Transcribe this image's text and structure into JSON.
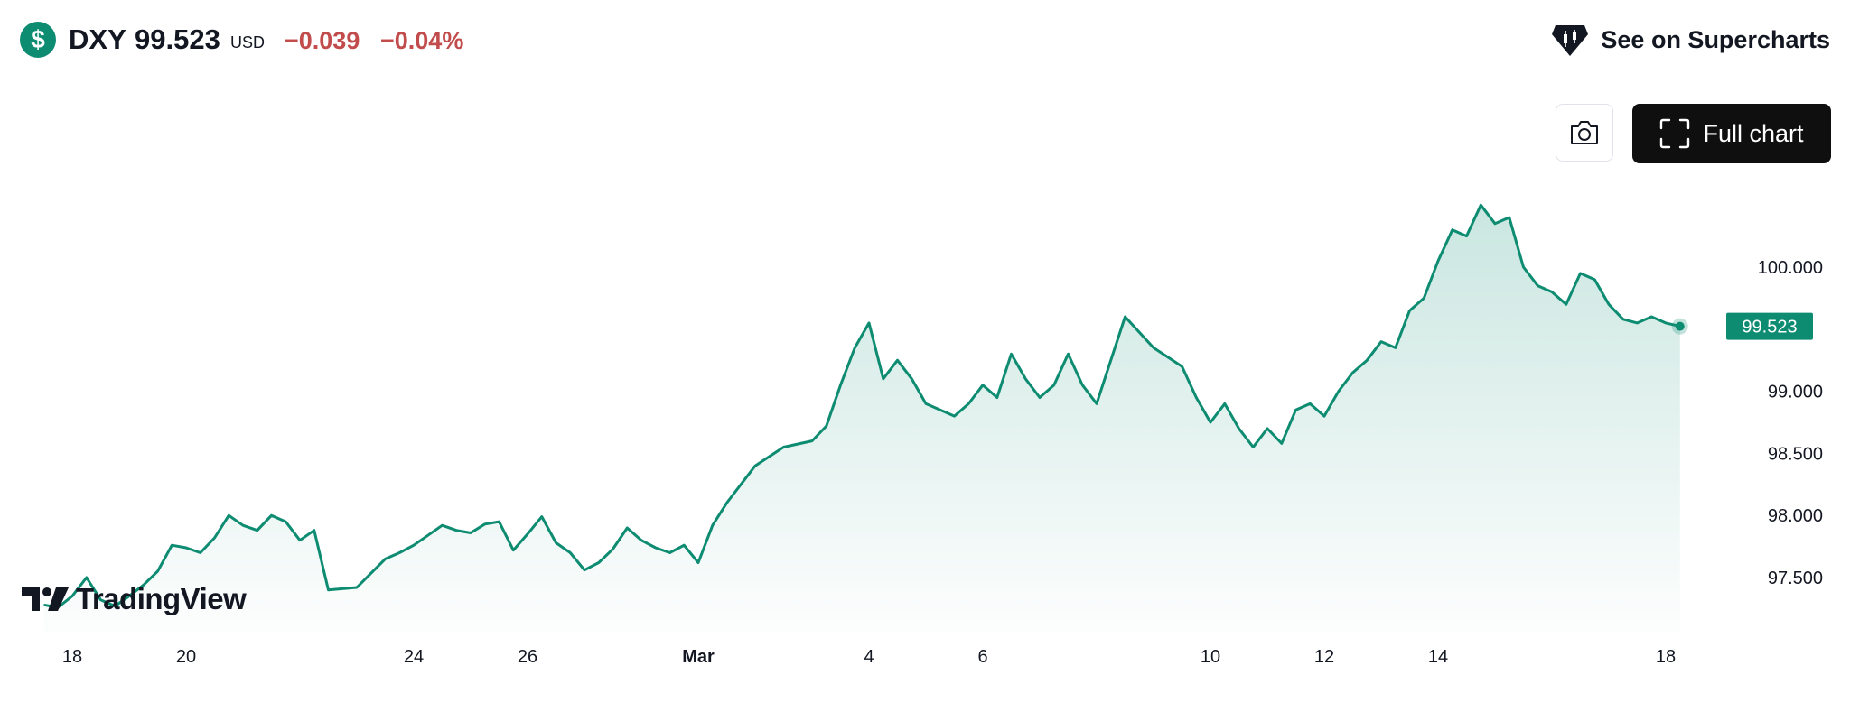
{
  "header": {
    "symbol": "DXY",
    "price": "99.523",
    "currency": "USD",
    "change": "−0.039",
    "change_percent": "−0.04%",
    "symbol_icon": "dollar-icon",
    "supercharts_label": "See on Supercharts",
    "supercharts_icon": "tradingview-diamond-icon"
  },
  "toolbar": {
    "camera_icon": "camera-icon",
    "full_chart_label": "Full chart",
    "full_chart_icon": "fullscreen-icon"
  },
  "branding": {
    "logo_text": "TradingView"
  },
  "colors": {
    "line": "#0e8c72",
    "fill": "#0e8c72",
    "negative": "#c24c4c",
    "label_bg": "#0e8c72"
  },
  "chart_data": {
    "type": "area",
    "title": "",
    "xlabel": "",
    "ylabel": "",
    "ylim": [
      97.22,
      100.77
    ],
    "y_ticks": [
      "100.000",
      "99.000",
      "98.500",
      "98.000",
      "97.500"
    ],
    "y_tick_values": [
      100.0,
      99.0,
      98.5,
      98.0,
      97.5
    ],
    "x_ticks": [
      "18",
      "20",
      "24",
      "26",
      "Mar",
      "4",
      "6",
      "10",
      "12",
      "14",
      "18"
    ],
    "x_tick_values": [
      "Feb 18",
      "Feb 20",
      "Feb 24",
      "Feb 26",
      "Mar 1",
      "Mar 4",
      "Mar 6",
      "Mar 10",
      "Mar 12",
      "Mar 14",
      "Mar 18"
    ],
    "last_value_label": "99.523",
    "grid": false,
    "legend": "none",
    "series": [
      {
        "values": [
          {
            "x": "Feb 17 12:00",
            "y": 97.28
          },
          {
            "x": "Feb 17 18:00",
            "y": 97.26
          },
          {
            "x": "Feb 18 00:00",
            "y": 97.35
          },
          {
            "x": "Feb 18 06:00",
            "y": 97.5
          },
          {
            "x": "Feb 18 12:00",
            "y": 97.32
          },
          {
            "x": "Feb 18 18:00",
            "y": 97.27
          },
          {
            "x": "Feb 19 00:00",
            "y": 97.35
          },
          {
            "x": "Feb 19 06:00",
            "y": 97.44
          },
          {
            "x": "Feb 19 12:00",
            "y": 97.55
          },
          {
            "x": "Feb 19 18:00",
            "y": 97.76
          },
          {
            "x": "Feb 20 00:00",
            "y": 97.74
          },
          {
            "x": "Feb 20 06:00",
            "y": 97.7
          },
          {
            "x": "Feb 20 12:00",
            "y": 97.82
          },
          {
            "x": "Feb 20 18:00",
            "y": 98.0
          },
          {
            "x": "Feb 21 00:00",
            "y": 97.92
          },
          {
            "x": "Feb 21 06:00",
            "y": 97.88
          },
          {
            "x": "Feb 21 12:00",
            "y": 98.0
          },
          {
            "x": "Feb 21 18:00",
            "y": 97.95
          },
          {
            "x": "Feb 22 00:00",
            "y": 97.8
          },
          {
            "x": "Feb 22 06:00",
            "y": 97.88
          },
          {
            "x": "Feb 22 12:00",
            "y": 97.4
          },
          {
            "x": "Feb 23 00:00",
            "y": 97.42
          },
          {
            "x": "Feb 23 12:00",
            "y": 97.65
          },
          {
            "x": "Feb 23 18:00",
            "y": 97.7
          },
          {
            "x": "Feb 24 00:00",
            "y": 97.76
          },
          {
            "x": "Feb 24 06:00",
            "y": 97.84
          },
          {
            "x": "Feb 24 12:00",
            "y": 97.92
          },
          {
            "x": "Feb 24 18:00",
            "y": 97.88
          },
          {
            "x": "Feb 25 00:00",
            "y": 97.86
          },
          {
            "x": "Feb 25 06:00",
            "y": 97.93
          },
          {
            "x": "Feb 25 12:00",
            "y": 97.95
          },
          {
            "x": "Feb 25 18:00",
            "y": 97.72
          },
          {
            "x": "Feb 26 00:00",
            "y": 97.85
          },
          {
            "x": "Feb 26 06:00",
            "y": 97.99
          },
          {
            "x": "Feb 26 12:00",
            "y": 97.78
          },
          {
            "x": "Feb 26 18:00",
            "y": 97.7
          },
          {
            "x": "Feb 27 00:00",
            "y": 97.56
          },
          {
            "x": "Feb 27 06:00",
            "y": 97.62
          },
          {
            "x": "Feb 27 12:00",
            "y": 97.73
          },
          {
            "x": "Feb 27 18:00",
            "y": 97.9
          },
          {
            "x": "Feb 28 00:00",
            "y": 97.8
          },
          {
            "x": "Feb 28 06:00",
            "y": 97.74
          },
          {
            "x": "Feb 28 12:00",
            "y": 97.7
          },
          {
            "x": "Feb 28 18:00",
            "y": 97.76
          },
          {
            "x": "Mar 1 00:00",
            "y": 97.62
          },
          {
            "x": "Mar 1 06:00",
            "y": 97.92
          },
          {
            "x": "Mar 1 12:00",
            "y": 98.1
          },
          {
            "x": "Mar 2 00:00",
            "y": 98.4
          },
          {
            "x": "Mar 2 12:00",
            "y": 98.55
          },
          {
            "x": "Mar 3 00:00",
            "y": 98.6
          },
          {
            "x": "Mar 3 06:00",
            "y": 98.72
          },
          {
            "x": "Mar 3 12:00",
            "y": 99.05
          },
          {
            "x": "Mar 3 18:00",
            "y": 99.35
          },
          {
            "x": "Mar 4 00:00",
            "y": 99.55
          },
          {
            "x": "Mar 4 06:00",
            "y": 99.1
          },
          {
            "x": "Mar 4 12:00",
            "y": 99.25
          },
          {
            "x": "Mar 4 18:00",
            "y": 99.1
          },
          {
            "x": "Mar 5 00:00",
            "y": 98.9
          },
          {
            "x": "Mar 5 06:00",
            "y": 98.85
          },
          {
            "x": "Mar 5 12:00",
            "y": 98.8
          },
          {
            "x": "Mar 5 18:00",
            "y": 98.9
          },
          {
            "x": "Mar 6 00:00",
            "y": 99.05
          },
          {
            "x": "Mar 6 06:00",
            "y": 98.95
          },
          {
            "x": "Mar 6 12:00",
            "y": 99.3
          },
          {
            "x": "Mar 6 18:00",
            "y": 99.1
          },
          {
            "x": "Mar 7 00:00",
            "y": 98.95
          },
          {
            "x": "Mar 7 06:00",
            "y": 99.05
          },
          {
            "x": "Mar 7 12:00",
            "y": 99.3
          },
          {
            "x": "Mar 7 18:00",
            "y": 99.05
          },
          {
            "x": "Mar 8 00:00",
            "y": 98.9
          },
          {
            "x": "Mar 8 12:00",
            "y": 99.6
          },
          {
            "x": "Mar 9 00:00",
            "y": 99.35
          },
          {
            "x": "Mar 9 12:00",
            "y": 99.2
          },
          {
            "x": "Mar 9 18:00",
            "y": 98.95
          },
          {
            "x": "Mar 10 00:00",
            "y": 98.75
          },
          {
            "x": "Mar 10 06:00",
            "y": 98.9
          },
          {
            "x": "Mar 10 12:00",
            "y": 98.7
          },
          {
            "x": "Mar 10 18:00",
            "y": 98.55
          },
          {
            "x": "Mar 11 00:00",
            "y": 98.7
          },
          {
            "x": "Mar 11 06:00",
            "y": 98.58
          },
          {
            "x": "Mar 11 12:00",
            "y": 98.85
          },
          {
            "x": "Mar 11 18:00",
            "y": 98.9
          },
          {
            "x": "Mar 12 00:00",
            "y": 98.8
          },
          {
            "x": "Mar 12 06:00",
            "y": 99.0
          },
          {
            "x": "Mar 12 12:00",
            "y": 99.15
          },
          {
            "x": "Mar 12 18:00",
            "y": 99.25
          },
          {
            "x": "Mar 13 00:00",
            "y": 99.4
          },
          {
            "x": "Mar 13 06:00",
            "y": 99.35
          },
          {
            "x": "Mar 13 12:00",
            "y": 99.65
          },
          {
            "x": "Mar 13 18:00",
            "y": 99.75
          },
          {
            "x": "Mar 14 00:00",
            "y": 100.05
          },
          {
            "x": "Mar 14 06:00",
            "y": 100.3
          },
          {
            "x": "Mar 14 12:00",
            "y": 100.25
          },
          {
            "x": "Mar 14 18:00",
            "y": 100.5
          },
          {
            "x": "Mar 15 00:00",
            "y": 100.35
          },
          {
            "x": "Mar 15 06:00",
            "y": 100.4
          },
          {
            "x": "Mar 15 12:00",
            "y": 100.0
          },
          {
            "x": "Mar 15 18:00",
            "y": 99.85
          },
          {
            "x": "Mar 16 00:00",
            "y": 99.8
          },
          {
            "x": "Mar 16 06:00",
            "y": 99.7
          },
          {
            "x": "Mar 16 12:00",
            "y": 99.95
          },
          {
            "x": "Mar 16 18:00",
            "y": 99.9
          },
          {
            "x": "Mar 17 00:00",
            "y": 99.7
          },
          {
            "x": "Mar 17 06:00",
            "y": 99.58
          },
          {
            "x": "Mar 17 12:00",
            "y": 99.55
          },
          {
            "x": "Mar 17 18:00",
            "y": 99.6
          },
          {
            "x": "Mar 18 00:00",
            "y": 99.55
          },
          {
            "x": "Mar 18 06:00",
            "y": 99.523
          }
        ]
      }
    ]
  }
}
